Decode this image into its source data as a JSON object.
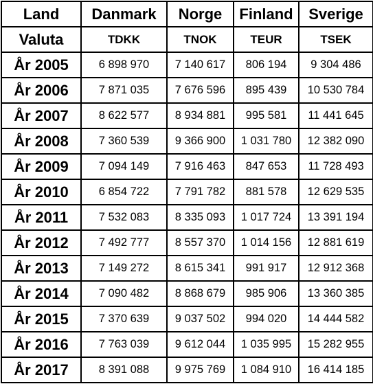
{
  "table": {
    "header": [
      "Land",
      "Danmark",
      "Norge",
      "Finland",
      "Sverige"
    ],
    "subheader": [
      "Valuta",
      "TDKK",
      "TNOK",
      "TEUR",
      "TSEK"
    ],
    "rows": [
      [
        "År 2005",
        "6 898 970",
        "7 140 617",
        "806 194",
        "9 304 486"
      ],
      [
        "År 2006",
        "7 871 035",
        "7 676 596",
        "895 439",
        "10 530 784"
      ],
      [
        "År 2007",
        "8 622 577",
        "8 934 881",
        "995 581",
        "11 441 645"
      ],
      [
        "År 2008",
        "7 360 539",
        "9 366 900",
        "1 031 780",
        "12 382 090"
      ],
      [
        "År 2009",
        "7 094 149",
        "7 916 463",
        "847 653",
        "11 728 493"
      ],
      [
        "År 2010",
        "6 854 722",
        "7 791 782",
        "881 578",
        "12 629 535"
      ],
      [
        "År 2011",
        "7 532 083",
        "8 335 093",
        "1 017 724",
        "13 391 194"
      ],
      [
        "År 2012",
        "7 492 777",
        "8 557 370",
        "1 014 156",
        "12 881 619"
      ],
      [
        "År 2013",
        "7 149 272",
        "8 615 341",
        "991 917",
        "12 912 368"
      ],
      [
        "År 2014",
        "7 090 482",
        "8 868 679",
        "985 906",
        "13 360 385"
      ],
      [
        "År 2015",
        "7 370 639",
        "9 037 502",
        "994 020",
        "14 444 582"
      ],
      [
        "År 2016",
        "7 763 039",
        "9 612 044",
        "1 035 995",
        "15 282 955"
      ],
      [
        "År 2017",
        "8 391 088",
        "9 975 769",
        "1 084 910",
        "16 414 185"
      ]
    ]
  }
}
